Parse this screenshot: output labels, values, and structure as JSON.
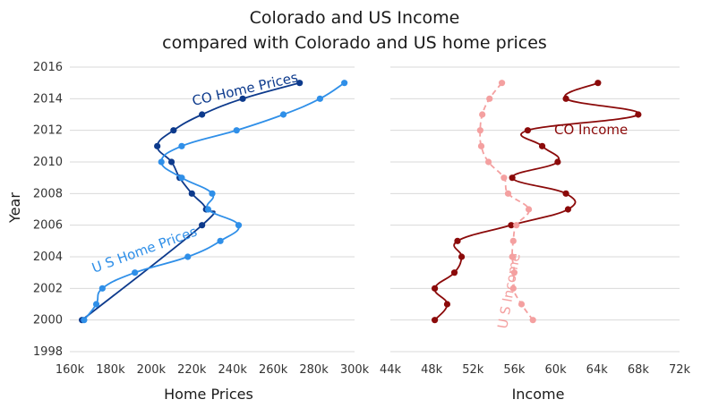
{
  "title": [
    "Colorado and US Income",
    "compared with Colorado and US home prices"
  ],
  "chart_data": [
    {
      "type": "line",
      "xlabel": "Home Prices",
      "ylabel": "Year",
      "xlim": [
        160000,
        300000
      ],
      "ylim": [
        1998,
        2016
      ],
      "x_ticks": [
        "160k",
        "180k",
        "200k",
        "220k",
        "240k",
        "260k",
        "280k",
        "300k"
      ],
      "y_ticks": [
        "1998",
        "2000",
        "2002",
        "2004",
        "2006",
        "2008",
        "2010",
        "2012",
        "2014",
        "2016"
      ],
      "grid": true,
      "series": [
        {
          "name": "CO Home Prices",
          "color": "#0d3a8c",
          "line_style": "solid",
          "points": [
            {
              "year": 2000,
              "value": 166000
            },
            {
              "year": 2006,
              "value": 225000
            },
            {
              "year": 2007,
              "value": 227000
            },
            {
              "year": 2008,
              "value": 220000
            },
            {
              "year": 2009,
              "value": 214000
            },
            {
              "year": 2010,
              "value": 210000
            },
            {
              "year": 2011,
              "value": 203000
            },
            {
              "year": 2012,
              "value": 211000
            },
            {
              "year": 2013,
              "value": 225000
            },
            {
              "year": 2014,
              "value": 245000
            },
            {
              "year": 2015,
              "value": 273000
            }
          ]
        },
        {
          "name": "U S Home Prices",
          "color": "#2f8fe8",
          "line_style": "solid",
          "points": [
            {
              "year": 2000,
              "value": 167000
            },
            {
              "year": 2001,
              "value": 173000
            },
            {
              "year": 2002,
              "value": 176000
            },
            {
              "year": 2003,
              "value": 192000
            },
            {
              "year": 2004,
              "value": 218000
            },
            {
              "year": 2005,
              "value": 234000
            },
            {
              "year": 2006,
              "value": 243000
            },
            {
              "year": 2007,
              "value": 228000
            },
            {
              "year": 2008,
              "value": 230000
            },
            {
              "year": 2009,
              "value": 215000
            },
            {
              "year": 2010,
              "value": 205000
            },
            {
              "year": 2011,
              "value": 215000
            },
            {
              "year": 2012,
              "value": 242000
            },
            {
              "year": 2013,
              "value": 265000
            },
            {
              "year": 2014,
              "value": 283000
            },
            {
              "year": 2015,
              "value": 295000
            }
          ]
        }
      ]
    },
    {
      "type": "line",
      "xlabel": "Income",
      "ylabel": "",
      "xlim": [
        44000,
        72000
      ],
      "ylim": [
        1998,
        2016
      ],
      "x_ticks": [
        "44k",
        "48k",
        "52k",
        "56k",
        "60k",
        "64k",
        "68k",
        "72k"
      ],
      "grid": true,
      "series": [
        {
          "name": "CO Income",
          "color": "#8b0a0a",
          "line_style": "solid",
          "points": [
            {
              "year": 2000,
              "value": 48300
            },
            {
              "year": 2001,
              "value": 49500
            },
            {
              "year": 2002,
              "value": 48300
            },
            {
              "year": 2003,
              "value": 50200
            },
            {
              "year": 2004,
              "value": 50900
            },
            {
              "year": 2005,
              "value": 50500
            },
            {
              "year": 2006,
              "value": 55700
            },
            {
              "year": 2007,
              "value": 61200
            },
            {
              "year": 2008,
              "value": 61000
            },
            {
              "year": 2009,
              "value": 55800
            },
            {
              "year": 2010,
              "value": 60200
            },
            {
              "year": 2011,
              "value": 58700
            },
            {
              "year": 2012,
              "value": 57300
            },
            {
              "year": 2013,
              "value": 68000
            },
            {
              "year": 2014,
              "value": 61000
            },
            {
              "year": 2015,
              "value": 64100
            }
          ]
        },
        {
          "name": "U S Income",
          "color": "#f4a0a0",
          "line_style": "dashed",
          "points": [
            {
              "year": 2000,
              "value": 57800
            },
            {
              "year": 2001,
              "value": 56700
            },
            {
              "year": 2002,
              "value": 55900
            },
            {
              "year": 2003,
              "value": 56000
            },
            {
              "year": 2004,
              "value": 55800
            },
            {
              "year": 2005,
              "value": 55900
            },
            {
              "year": 2006,
              "value": 56200
            },
            {
              "year": 2007,
              "value": 57400
            },
            {
              "year": 2008,
              "value": 55400
            },
            {
              "year": 2009,
              "value": 55000
            },
            {
              "year": 2010,
              "value": 53500
            },
            {
              "year": 2011,
              "value": 52800
            },
            {
              "year": 2012,
              "value": 52700
            },
            {
              "year": 2013,
              "value": 52900
            },
            {
              "year": 2014,
              "value": 53600
            },
            {
              "year": 2015,
              "value": 54800
            }
          ]
        }
      ]
    }
  ],
  "annotations": {
    "co_home": "CO Home Prices",
    "us_home": "U S Home Prices",
    "co_income": "CO Income",
    "us_income": "U S Income"
  }
}
